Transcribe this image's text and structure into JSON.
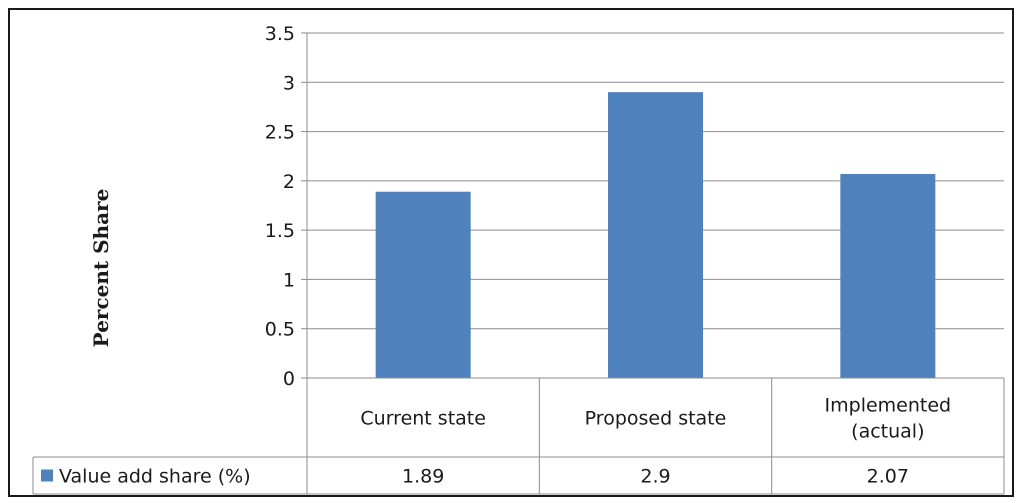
{
  "chart_data": {
    "type": "bar",
    "categories": [
      "Current state",
      "Proposed state",
      "Implemented (actual)"
    ],
    "category_lines": [
      [
        "Current state"
      ],
      [
        "Proposed state"
      ],
      [
        "Implemented",
        "(actual)"
      ]
    ],
    "series": [
      {
        "name": "Value add share (%)",
        "values": [
          1.89,
          2.9,
          2.07
        ],
        "value_labels": [
          "1.89",
          "2.9",
          "2.07"
        ]
      }
    ],
    "title": "",
    "xlabel": "",
    "ylabel": "Percent Share",
    "ylim": [
      0,
      3.5
    ],
    "yticks": [
      "0",
      "0.5",
      "1",
      "1.5",
      "2",
      "2.5",
      "3",
      "3.5"
    ],
    "grid": true,
    "legend": "data-table",
    "colors": {
      "bar": "#4F81BD",
      "grid": "#8c8c8c",
      "border": "#1a1a1a"
    }
  }
}
